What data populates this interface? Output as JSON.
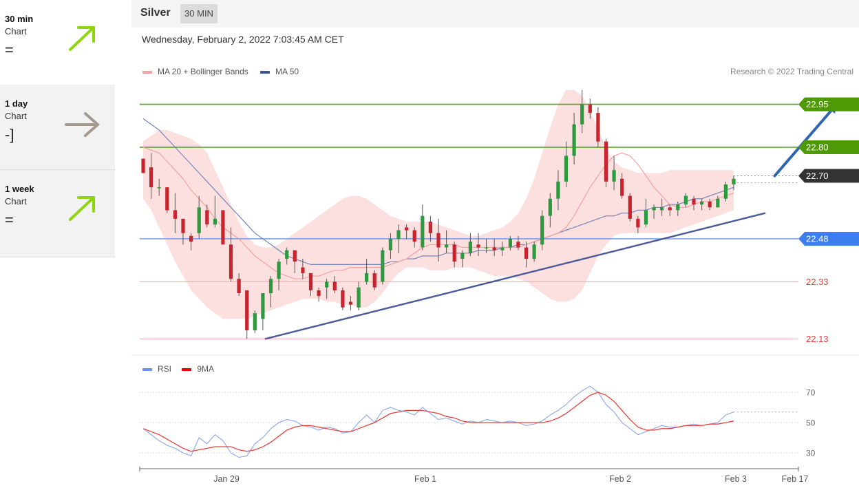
{
  "sidebar": {
    "items": [
      {
        "title": "30 min",
        "subtitle": "Chart",
        "signal": "=",
        "arrow": "up",
        "arrow_color": "#8fd610"
      },
      {
        "title": "1 day",
        "subtitle": "Chart",
        "signal": "-]",
        "arrow": "right",
        "arrow_color": "#a49a90"
      },
      {
        "title": "1 week",
        "subtitle": "Chart",
        "signal": "=",
        "arrow": "up",
        "arrow_color": "#8fd610"
      }
    ]
  },
  "header": {
    "asset": "Silver",
    "timeframe": "30 MIN"
  },
  "datetime": "Wednesday, February 2, 2022 7:03:45 AM CET",
  "copyright": "Research © 2022 Trading Central",
  "colors": {
    "bullish": "#2e9a3f",
    "bearish": "#c8242e",
    "wick": "#555555",
    "bollinger": "#fbd9d9",
    "ma20": "#f4a1a1",
    "ma50": "#7586b8",
    "trendline": "#4a5a9a",
    "target": "#2f66b0",
    "resistance": "#56a31c",
    "support_blue": "#6f95ee",
    "support_red": "#f3b2b2",
    "rsi": "#8aa4ec",
    "rsi_ma": "#e8413c"
  },
  "chart_data": [
    {
      "type": "candlestick",
      "legend": [
        {
          "name": "MA 20 + Bollinger Bands",
          "color": "#f4a1a1"
        },
        {
          "name": "MA 50",
          "color": "#3a5694"
        }
      ],
      "x_ticks": [
        "Jan 29",
        "Feb 1",
        "Feb 2",
        "Feb 3",
        "Feb 17"
      ],
      "ylim": [
        22.1,
        23.05
      ],
      "levels": [
        {
          "value": 22.95,
          "label": "22.95",
          "kind": "resistance"
        },
        {
          "value": 22.8,
          "label": "22.80",
          "kind": "resistance"
        },
        {
          "value": 22.7,
          "label": "22.70",
          "kind": "current"
        },
        {
          "value": 22.48,
          "label": "22.48",
          "kind": "support"
        },
        {
          "value": 22.33,
          "label": "22.33",
          "kind": "support_weak"
        },
        {
          "value": 22.13,
          "label": "22.13",
          "kind": "support_weak"
        }
      ],
      "trendline": {
        "from": [
          0.19,
          22.13
        ],
        "to": [
          0.95,
          22.57
        ]
      },
      "target_arrow": {
        "from": [
          0.964,
          22.7
        ],
        "to": [
          1.058,
          22.95
        ]
      },
      "series": [
        {
          "name": "MA 20",
          "values": [
            22.8,
            22.79,
            22.78,
            22.75,
            22.72,
            22.69,
            22.65,
            22.62,
            22.59,
            22.55,
            22.52,
            22.5,
            22.48,
            22.45,
            22.42,
            22.4,
            22.38,
            22.36,
            22.35,
            22.34,
            22.34,
            22.35,
            22.35,
            22.36,
            22.37,
            22.37,
            22.38,
            22.38,
            22.38,
            22.38,
            22.38,
            22.39,
            22.4,
            22.41,
            22.43,
            22.45,
            22.46,
            22.46,
            22.46,
            22.46,
            22.45,
            22.45,
            22.45,
            22.45,
            22.45,
            22.45,
            22.45,
            22.45,
            22.46,
            22.47,
            22.48,
            22.49,
            22.5,
            22.52,
            22.56,
            22.61,
            22.66,
            22.7,
            22.74,
            22.77,
            22.78,
            22.77,
            22.74,
            22.7,
            22.66,
            22.63,
            22.6,
            22.59,
            22.59,
            22.6,
            22.61,
            22.61,
            22.62,
            22.63,
            22.64
          ]
        },
        {
          "name": "MA 50",
          "values": [
            22.9,
            22.88,
            22.86,
            22.83,
            22.8,
            22.77,
            22.74,
            22.71,
            22.68,
            22.65,
            22.62,
            22.59,
            22.56,
            22.53,
            22.5,
            22.48,
            22.46,
            22.44,
            22.42,
            22.41,
            22.4,
            22.39,
            22.39,
            22.39,
            22.39,
            22.39,
            22.39,
            22.39,
            22.39,
            22.39,
            22.39,
            22.4,
            22.4,
            22.41,
            22.41,
            22.42,
            22.42,
            22.42,
            22.43,
            22.43,
            22.43,
            22.43,
            22.44,
            22.44,
            22.44,
            22.45,
            22.45,
            22.46,
            22.46,
            22.47,
            22.48,
            22.49,
            22.5,
            22.51,
            22.52,
            22.53,
            22.54,
            22.55,
            22.56,
            22.56,
            22.57,
            22.57,
            22.58,
            22.58,
            22.59,
            22.59,
            22.6,
            22.6,
            22.61,
            22.62,
            22.62,
            22.63,
            22.64,
            22.65,
            22.66
          ]
        },
        {
          "name": "Bollinger Upper",
          "values": [
            22.82,
            22.84,
            22.86,
            22.86,
            22.85,
            22.84,
            22.83,
            22.81,
            22.78,
            22.72,
            22.66,
            22.6,
            22.54,
            22.49,
            22.46,
            22.45,
            22.45,
            22.46,
            22.48,
            22.5,
            22.52,
            22.54,
            22.56,
            22.58,
            22.6,
            22.62,
            22.63,
            22.63,
            22.62,
            22.6,
            22.58,
            22.56,
            22.55,
            22.54,
            22.54,
            22.54,
            22.54,
            22.53,
            22.52,
            22.51,
            22.5,
            22.49,
            22.49,
            22.5,
            22.51,
            22.52,
            22.54,
            22.57,
            22.62,
            22.69,
            22.78,
            22.87,
            22.95,
            23.0,
            23.0,
            22.98,
            22.93,
            22.86,
            22.8,
            22.75,
            22.73,
            22.72,
            22.71,
            22.71,
            22.71,
            22.71,
            22.72,
            22.72,
            22.72,
            22.72,
            22.72,
            22.72,
            22.72,
            22.72,
            22.72
          ]
        },
        {
          "name": "Bollinger Lower",
          "values": [
            22.62,
            22.58,
            22.52,
            22.46,
            22.4,
            22.35,
            22.3,
            22.27,
            22.24,
            22.22,
            22.2,
            22.2,
            22.2,
            22.2,
            22.21,
            22.22,
            22.23,
            22.24,
            22.25,
            22.26,
            22.27,
            22.27,
            22.27,
            22.26,
            22.26,
            22.25,
            22.25,
            22.24,
            22.24,
            22.26,
            22.29,
            22.33,
            22.36,
            22.38,
            22.38,
            22.38,
            22.37,
            22.37,
            22.37,
            22.38,
            22.38,
            22.38,
            22.37,
            22.36,
            22.35,
            22.35,
            22.35,
            22.34,
            22.33,
            22.31,
            22.29,
            22.27,
            22.26,
            22.26,
            22.27,
            22.3,
            22.36,
            22.42,
            22.46,
            22.49,
            22.5,
            22.5,
            22.5,
            22.5,
            22.5,
            22.5,
            22.5,
            22.51,
            22.52,
            22.53,
            22.54,
            22.55,
            22.56,
            22.57,
            22.58
          ]
        },
        {
          "name": "Price",
          "ohlc": [
            [
              22.76,
              22.76,
              22.71,
              22.71
            ],
            [
              22.73,
              22.78,
              22.62,
              22.66
            ],
            [
              22.66,
              22.69,
              22.63,
              22.66
            ],
            [
              22.66,
              22.66,
              22.57,
              22.58
            ],
            [
              22.58,
              22.64,
              22.5,
              22.55
            ],
            [
              22.55,
              22.55,
              22.46,
              22.5
            ],
            [
              22.49,
              22.5,
              22.44,
              22.47
            ],
            [
              22.5,
              22.63,
              22.48,
              22.59
            ],
            [
              22.58,
              22.6,
              22.52,
              22.53
            ],
            [
              22.53,
              22.63,
              22.52,
              22.55
            ],
            [
              22.58,
              22.58,
              22.46,
              22.46
            ],
            [
              22.46,
              22.52,
              22.33,
              22.34
            ],
            [
              22.34,
              22.36,
              22.28,
              22.29
            ],
            [
              22.3,
              22.3,
              22.13,
              22.16
            ],
            [
              22.16,
              22.23,
              22.15,
              22.22
            ],
            [
              22.2,
              22.29,
              22.16,
              22.29
            ],
            [
              22.29,
              22.35,
              22.24,
              22.34
            ],
            [
              22.34,
              22.41,
              22.3,
              22.4
            ],
            [
              22.41,
              22.45,
              22.39,
              22.44
            ],
            [
              22.44,
              22.44,
              22.36,
              22.4
            ],
            [
              22.38,
              22.41,
              22.34,
              22.36
            ],
            [
              22.36,
              22.36,
              22.28,
              22.3
            ],
            [
              22.3,
              22.31,
              22.26,
              22.28
            ],
            [
              22.31,
              22.34,
              22.27,
              22.33
            ],
            [
              22.33,
              22.35,
              22.29,
              22.3
            ],
            [
              22.3,
              22.31,
              22.23,
              22.24
            ],
            [
              22.26,
              22.28,
              22.23,
              22.25
            ],
            [
              22.24,
              22.33,
              22.23,
              22.31
            ],
            [
              22.33,
              22.41,
              22.32,
              22.36
            ],
            [
              22.36,
              22.37,
              22.3,
              22.31
            ],
            [
              22.33,
              22.45,
              22.32,
              22.44
            ],
            [
              22.44,
              22.5,
              22.41,
              22.48
            ],
            [
              22.48,
              22.53,
              22.43,
              22.51
            ],
            [
              22.52,
              22.53,
              22.48,
              22.51
            ],
            [
              22.51,
              22.52,
              22.45,
              22.47
            ],
            [
              22.45,
              22.6,
              22.44,
              22.56
            ],
            [
              22.54,
              22.56,
              22.47,
              22.5
            ],
            [
              22.5,
              22.55,
              22.4,
              22.45
            ],
            [
              22.45,
              22.51,
              22.43,
              22.46
            ],
            [
              22.46,
              22.47,
              22.38,
              22.4
            ],
            [
              22.41,
              22.44,
              22.38,
              22.43
            ],
            [
              22.43,
              22.5,
              22.42,
              22.47
            ],
            [
              22.46,
              22.5,
              22.42,
              22.45
            ],
            [
              22.45,
              22.48,
              22.43,
              22.45
            ],
            [
              22.45,
              22.48,
              22.42,
              22.44
            ],
            [
              22.44,
              22.47,
              22.42,
              22.45
            ],
            [
              22.45,
              22.49,
              22.44,
              22.48
            ],
            [
              22.47,
              22.49,
              22.44,
              22.45
            ],
            [
              22.45,
              22.47,
              22.38,
              22.41
            ],
            [
              22.41,
              22.47,
              22.4,
              22.46
            ],
            [
              22.46,
              22.58,
              22.44,
              22.56
            ],
            [
              22.56,
              22.64,
              22.52,
              22.62
            ],
            [
              22.62,
              22.72,
              22.58,
              22.68
            ],
            [
              22.68,
              22.82,
              22.66,
              22.77
            ],
            [
              22.77,
              22.92,
              22.74,
              22.88
            ],
            [
              22.88,
              23.0,
              22.85,
              22.95
            ],
            [
              22.95,
              22.97,
              22.9,
              22.92
            ],
            [
              22.92,
              22.94,
              22.8,
              22.82
            ],
            [
              22.82,
              22.83,
              22.66,
              22.68
            ],
            [
              22.68,
              22.77,
              22.65,
              22.72
            ],
            [
              22.69,
              22.71,
              22.62,
              22.63
            ],
            [
              22.63,
              22.64,
              22.54,
              22.55
            ],
            [
              22.55,
              22.56,
              22.5,
              22.52
            ],
            [
              22.53,
              22.62,
              22.52,
              22.58
            ],
            [
              22.58,
              22.6,
              22.55,
              22.59
            ],
            [
              22.58,
              22.62,
              22.56,
              22.59
            ],
            [
              22.59,
              22.6,
              22.56,
              22.58
            ],
            [
              22.58,
              22.61,
              22.56,
              22.6
            ],
            [
              22.6,
              22.64,
              22.59,
              22.63
            ],
            [
              22.62,
              22.63,
              22.58,
              22.6
            ],
            [
              22.6,
              22.62,
              22.58,
              22.61
            ],
            [
              22.61,
              22.62,
              22.58,
              22.59
            ],
            [
              22.59,
              22.63,
              22.59,
              22.62
            ],
            [
              22.62,
              22.68,
              22.61,
              22.67
            ],
            [
              22.67,
              22.7,
              22.65,
              22.69
            ]
          ]
        }
      ]
    },
    {
      "type": "line",
      "legend": [
        {
          "name": "RSI",
          "color": "#6f8fe8"
        },
        {
          "name": "9MA",
          "color": "#e60000"
        }
      ],
      "y_ticks": [
        30,
        50,
        70
      ],
      "ylim": [
        20,
        80
      ],
      "series": [
        {
          "name": "RSI",
          "values": [
            46,
            42,
            38,
            35,
            33,
            30,
            28,
            40,
            36,
            42,
            38,
            30,
            27,
            28,
            36,
            40,
            46,
            50,
            52,
            51,
            48,
            47,
            45,
            47,
            46,
            43,
            44,
            50,
            55,
            50,
            58,
            60,
            58,
            57,
            55,
            60,
            56,
            52,
            53,
            51,
            49,
            51,
            50,
            52,
            51,
            50,
            51,
            50,
            48,
            49,
            51,
            55,
            58,
            62,
            67,
            71,
            74,
            70,
            62,
            57,
            50,
            46,
            42,
            44,
            46,
            48,
            47,
            47,
            48,
            49,
            48,
            49,
            50,
            55,
            57
          ]
        },
        {
          "name": "9MA",
          "values": [
            46,
            44,
            42,
            39,
            36,
            33,
            31,
            32,
            33,
            34,
            34,
            34,
            32,
            31,
            32,
            34,
            37,
            41,
            45,
            47,
            48,
            48,
            47,
            46,
            45,
            44,
            44,
            46,
            48,
            50,
            53,
            56,
            57,
            58,
            58,
            58,
            57,
            56,
            54,
            53,
            51,
            50,
            50,
            50,
            50,
            50,
            50,
            50,
            50,
            50,
            50,
            51,
            53,
            56,
            60,
            64,
            68,
            70,
            68,
            64,
            58,
            52,
            47,
            45,
            45,
            46,
            46,
            47,
            48,
            48,
            48,
            49,
            49,
            50,
            51
          ]
        }
      ]
    }
  ]
}
